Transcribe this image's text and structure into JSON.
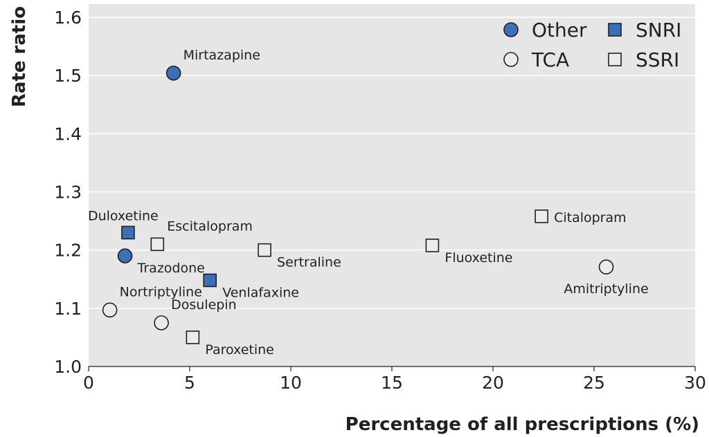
{
  "chart_data": {
    "type": "scatter",
    "xlabel": "Percentage of all prescriptions (%)",
    "ylabel": "Rate ratio",
    "xlim": [
      0,
      30
    ],
    "ylim": [
      1.0,
      1.6
    ],
    "x_ticks": [
      "0",
      "5",
      "10",
      "15",
      "20",
      "25",
      "30"
    ],
    "y_ticks": [
      "1.0",
      "1.1",
      "1.2",
      "1.3",
      "1.4",
      "1.5",
      "1.6"
    ],
    "grid": "horizontal",
    "legend_position": "top-right",
    "colors": {
      "plot_bg": "#e6e6e6",
      "filled": "#3d6fb6",
      "open": "#ebebeb",
      "edge": "#231f20"
    },
    "series": [
      {
        "name": "Other",
        "marker": "circle",
        "fill": "filled",
        "points": [
          {
            "label": "Mirtazapine",
            "x": 4.2,
            "y": 1.504,
            "label_pos": "above-right"
          },
          {
            "label": "Trazodone",
            "x": 1.8,
            "y": 1.19,
            "label_pos": "below-right"
          }
        ]
      },
      {
        "name": "SNRI",
        "marker": "square",
        "fill": "filled",
        "points": [
          {
            "label": "Duloxetine",
            "x": 1.95,
            "y": 1.23,
            "label_pos": "above-left"
          },
          {
            "label": "Venlafaxine",
            "x": 6.0,
            "y": 1.148,
            "label_pos": "below-right"
          }
        ]
      },
      {
        "name": "TCA",
        "marker": "circle",
        "fill": "open",
        "points": [
          {
            "label": "Amitriptyline",
            "x": 25.6,
            "y": 1.171,
            "label_pos": "below"
          },
          {
            "label": "Nortriptyline",
            "x": 1.05,
            "y": 1.097,
            "label_pos": "above-right"
          },
          {
            "label": "Dosulepin",
            "x": 3.6,
            "y": 1.075,
            "label_pos": "above-right"
          }
        ]
      },
      {
        "name": "SSRI",
        "marker": "square",
        "fill": "open",
        "points": [
          {
            "label": "Citalopram",
            "x": 22.4,
            "y": 1.258,
            "label_pos": "right"
          },
          {
            "label": "Escitalopram",
            "x": 3.4,
            "y": 1.21,
            "label_pos": "above-right"
          },
          {
            "label": "Sertraline",
            "x": 8.7,
            "y": 1.2,
            "label_pos": "below-right"
          },
          {
            "label": "Fluoxetine",
            "x": 17.0,
            "y": 1.208,
            "label_pos": "below-right"
          },
          {
            "label": "Paroxetine",
            "x": 5.15,
            "y": 1.05,
            "label_pos": "below-right"
          }
        ]
      }
    ]
  }
}
